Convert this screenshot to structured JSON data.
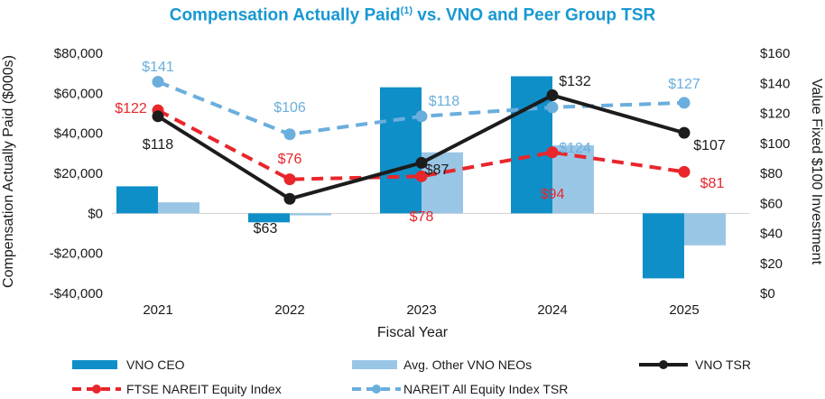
{
  "chart_data": {
    "type": "bar",
    "title": "Compensation Actually Paid",
    "title_superscript": "(1)",
    "title_suffix": " vs. VNO and Peer Group TSR",
    "xlabel": "Fiscal Year",
    "ylabel": "Compensation Actually Paid ($000s)",
    "y2label": "Value Fixed $100 Investment",
    "categories": [
      "2021",
      "2022",
      "2023",
      "2024",
      "2025"
    ],
    "ylim": [
      -40000,
      80000
    ],
    "y_ticks": [
      80000,
      60000,
      40000,
      20000,
      0,
      -20000,
      -40000
    ],
    "y_tick_labels": [
      "$80,000",
      "$60,000",
      "$40,000",
      "$20,000",
      "$0",
      "-$20,000",
      "-$40,000"
    ],
    "y2lim": [
      0,
      160
    ],
    "y2_ticks": [
      160,
      140,
      120,
      100,
      80,
      60,
      40,
      20,
      0
    ],
    "y2_tick_labels": [
      "$160",
      "$140",
      "$120",
      "$100",
      "$80",
      "$60",
      "$40",
      "$20",
      "$0"
    ],
    "bar_series": [
      {
        "name": "VNO CEO",
        "color": "#0f8fc8",
        "values": [
          13500,
          -4500,
          63000,
          68500,
          -32500
        ]
      },
      {
        "name": "Avg. Other VNO NEOs",
        "color": "#9ac6e6",
        "values": [
          5500,
          -1000,
          30500,
          34000,
          -16000
        ]
      }
    ],
    "line_series": [
      {
        "name": "VNO TSR",
        "color": "#1c1c1c",
        "style": "solid",
        "values": [
          118,
          63,
          87,
          132,
          107
        ],
        "labels": [
          "$118",
          "$63",
          "$87",
          "$132",
          "$107"
        ]
      },
      {
        "name": "FTSE NAREIT Equity Index",
        "color": "#e8262b",
        "style": "dashed",
        "values": [
          122,
          76,
          78,
          94,
          81
        ],
        "labels": [
          "$122",
          "$76",
          "$78",
          "$94",
          "$81"
        ]
      },
      {
        "name": "NAREIT All Equity Index TSR",
        "color": "#6aaedd",
        "style": "dashed",
        "values": [
          141,
          106,
          118,
          124,
          127
        ],
        "labels": [
          "$141",
          "$106",
          "$118",
          "$124",
          "$127"
        ]
      }
    ]
  }
}
